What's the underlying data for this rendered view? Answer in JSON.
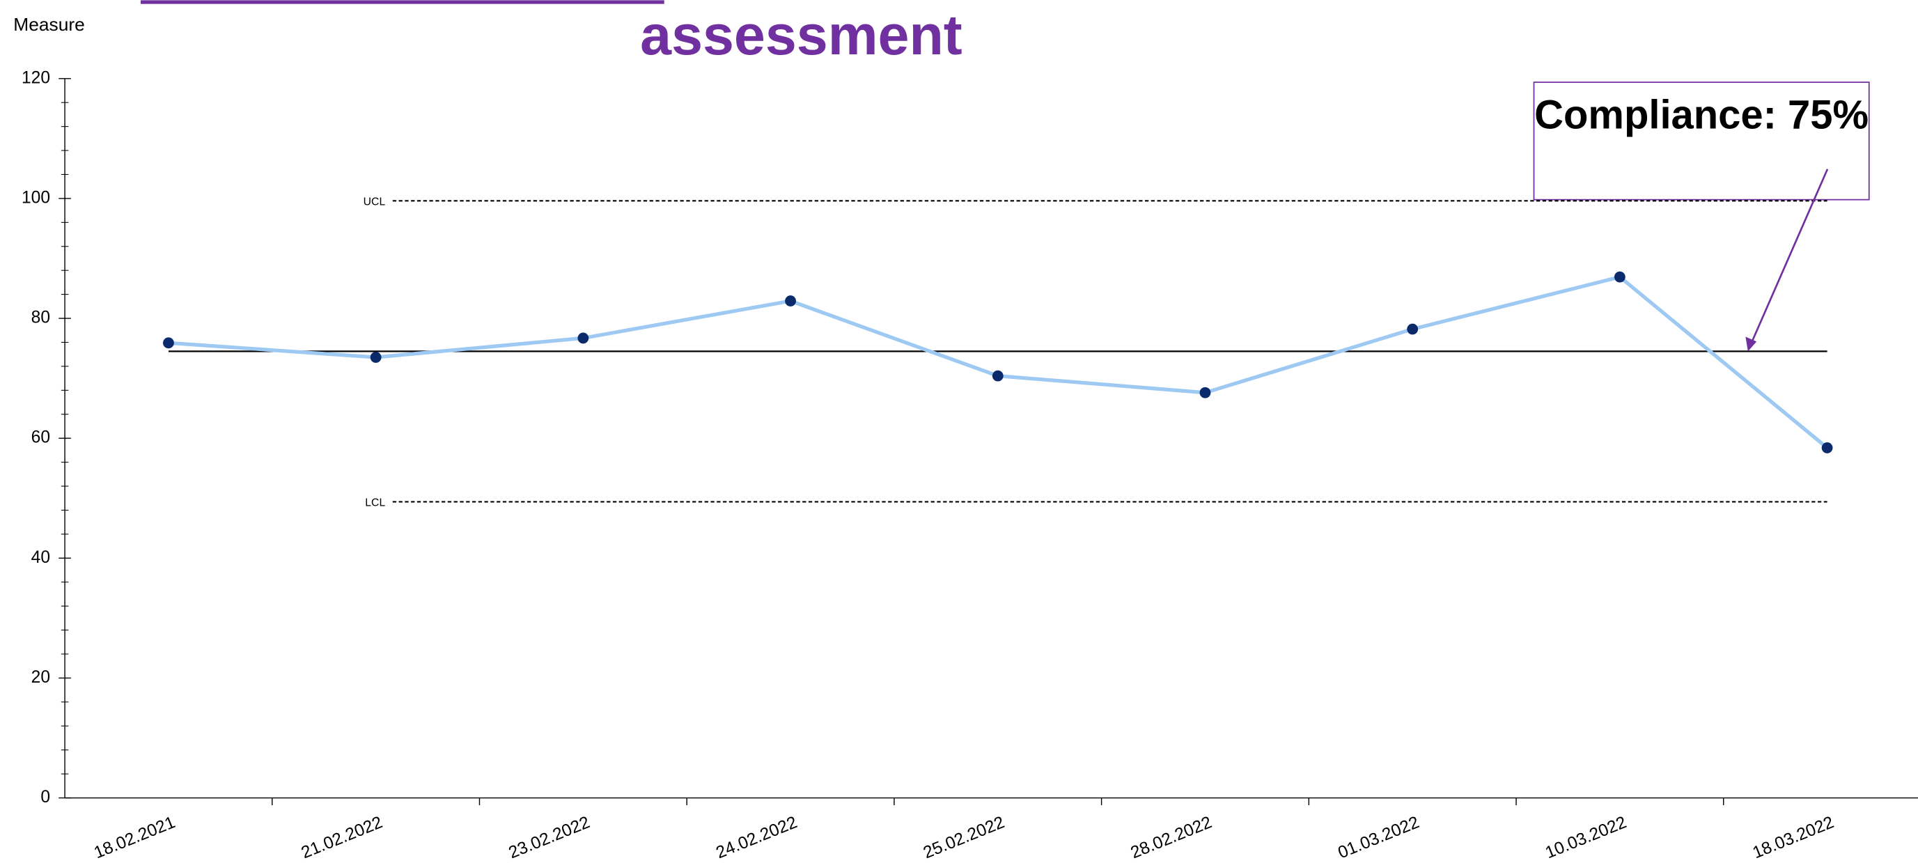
{
  "chart_data": {
    "type": "line",
    "title": "assessment",
    "y_label": "Measure",
    "categories": [
      "18.02.2021",
      "21.02.2022",
      "23.02.2022",
      "24.02.2022",
      "25.02.2022",
      "28.02.2022",
      "01.03.2022",
      "10.03.2022",
      "18.03.2022"
    ],
    "values": [
      75.9,
      73.5,
      76.7,
      82.9,
      70.4,
      67.6,
      78.2,
      86.9,
      58.4
    ],
    "color": "#9dc9f3",
    "marker_color": "#0b2a6b",
    "center_line": 74.5,
    "ucl": {
      "label": "UCL",
      "value": 99.6
    },
    "lcl": {
      "label": "LCL",
      "value": 49.4
    },
    "annotation": "Compliance: 75%",
    "ylim": [
      0,
      120
    ],
    "yticks": [
      0,
      20,
      40,
      60,
      80,
      100,
      120
    ],
    "grid": false
  }
}
